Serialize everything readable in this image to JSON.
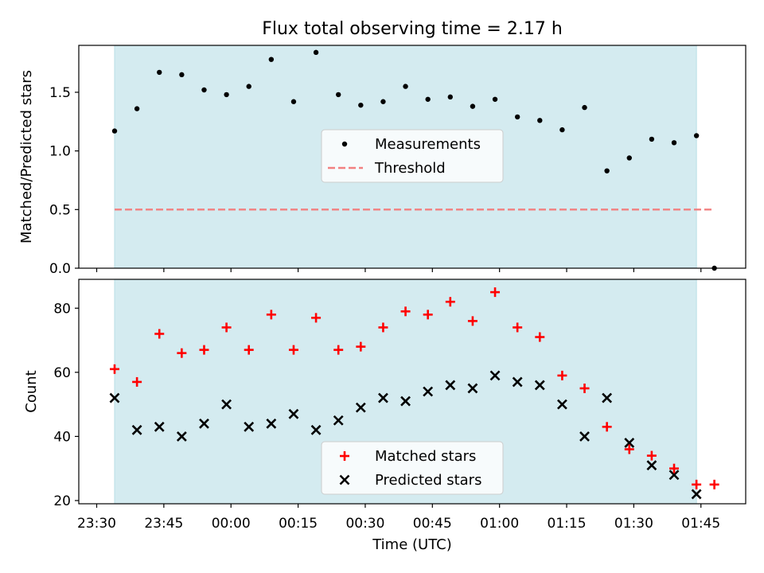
{
  "title": "Flux total observing time = 2.17 h",
  "colors": {
    "shade": "#d4ebf0",
    "shade_edge": "#b9dfe6",
    "measurement": "#000000",
    "threshold": "#f28080",
    "matched": "#ff0000",
    "predicted": "#000000"
  },
  "chart_data": [
    {
      "type": "scatter",
      "panel": "top",
      "ylabel": "Matched/Predicted stars",
      "ylim": [
        0,
        1.9
      ],
      "yticks": [
        0.0,
        0.5,
        1.0,
        1.5
      ],
      "ytick_labels": [
        "0.0",
        "0.5",
        "1.0",
        "1.5"
      ],
      "shaded_interval": [
        "23:34",
        "01:44"
      ],
      "legend": {
        "placement": "center",
        "measurements_label": "Measurements",
        "threshold_label": "Threshold"
      },
      "threshold": {
        "value": 0.5,
        "x_range": [
          "23:34",
          "01:48"
        ]
      },
      "measurements": {
        "x": [
          "23:34",
          "23:39",
          "23:44",
          "23:49",
          "23:54",
          "23:59",
          "00:04",
          "00:09",
          "00:14",
          "00:19",
          "00:24",
          "00:29",
          "00:34",
          "00:39",
          "00:44",
          "00:49",
          "00:54",
          "00:59",
          "01:04",
          "01:09",
          "01:14",
          "01:19",
          "01:24",
          "01:29",
          "01:34",
          "01:39",
          "01:44",
          "01:48"
        ],
        "y": [
          1.17,
          1.36,
          1.67,
          1.65,
          1.52,
          1.48,
          1.55,
          1.78,
          1.42,
          1.84,
          1.48,
          1.39,
          1.42,
          1.55,
          1.44,
          1.46,
          1.38,
          1.44,
          1.29,
          1.26,
          1.18,
          1.37,
          0.83,
          0.94,
          1.1,
          1.07,
          1.13,
          0.0
        ]
      }
    },
    {
      "type": "scatter",
      "panel": "bottom",
      "xlabel": "Time (UTC)",
      "ylabel": "Count",
      "ylim": [
        19,
        89
      ],
      "yticks": [
        20,
        40,
        60,
        80
      ],
      "ytick_labels": [
        "20",
        "40",
        "60",
        "80"
      ],
      "xlim": [
        "23:26",
        "01:55"
      ],
      "xticks": [
        "23:30",
        "23:45",
        "00:00",
        "00:15",
        "00:30",
        "00:45",
        "01:00",
        "01:15",
        "01:30",
        "01:45"
      ],
      "shaded_interval": [
        "23:34",
        "01:44"
      ],
      "legend": {
        "placement": "lower center"
      },
      "series": [
        {
          "name": "Matched stars",
          "marker": "+",
          "x": [
            "23:34",
            "23:39",
            "23:44",
            "23:49",
            "23:54",
            "23:59",
            "00:04",
            "00:09",
            "00:14",
            "00:19",
            "00:24",
            "00:29",
            "00:34",
            "00:39",
            "00:44",
            "00:49",
            "00:54",
            "00:59",
            "01:04",
            "01:09",
            "01:14",
            "01:19",
            "01:24",
            "01:29",
            "01:34",
            "01:39",
            "01:44",
            "01:48"
          ],
          "values": [
            61,
            57,
            72,
            66,
            67,
            74,
            67,
            78,
            67,
            77,
            67,
            68,
            74,
            79,
            78,
            82,
            76,
            85,
            74,
            71,
            59,
            55,
            43,
            36,
            34,
            30,
            25,
            25
          ]
        },
        {
          "name": "Predicted stars",
          "marker": "x",
          "x": [
            "23:34",
            "23:39",
            "23:44",
            "23:49",
            "23:54",
            "23:59",
            "00:04",
            "00:09",
            "00:14",
            "00:19",
            "00:24",
            "00:29",
            "00:34",
            "00:39",
            "00:44",
            "00:49",
            "00:54",
            "00:59",
            "01:04",
            "01:09",
            "01:14",
            "01:19",
            "01:24",
            "01:29",
            "01:34",
            "01:39",
            "01:44"
          ],
          "values": [
            52,
            42,
            43,
            40,
            44,
            50,
            43,
            44,
            47,
            42,
            45,
            49,
            52,
            51,
            54,
            56,
            55,
            59,
            57,
            56,
            50,
            40,
            52,
            38,
            31,
            28,
            22
          ]
        }
      ]
    }
  ]
}
